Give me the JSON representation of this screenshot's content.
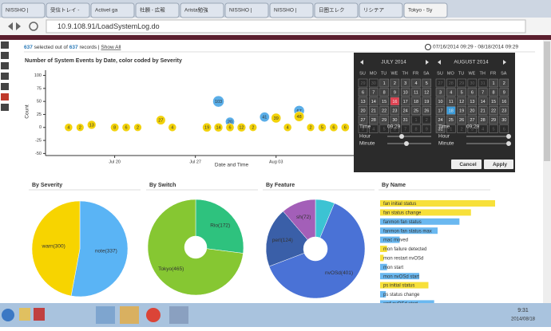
{
  "browser": {
    "tabs": [
      "NISSHO |",
      "受信トレイ -",
      "Activel ga",
      "社願 - 広報",
      "Arista勉強",
      "NISSHO |",
      "NISSHO |",
      "日圏エレク",
      "リシテア",
      "Tokyo - Sy"
    ],
    "url": "10.9.108.91/LoadSystemLog.do"
  },
  "toolbar": {
    "selected": 637,
    "selected_text": "selected out of",
    "total": 637,
    "records_text": "records |",
    "show_all": "Show All",
    "range": "07/16/2014 09:29 - 08/18/2014 09:29"
  },
  "chart_data": [
    {
      "type": "scatter",
      "title": "Number of System Events by Date, color coded by Severity",
      "x_label": "Date and Time",
      "y_label": "Count",
      "xlim": [
        "Jul 14",
        "Aug 22"
      ],
      "xticks": [
        "Jul 20",
        "Jul 27",
        "Aug 03"
      ],
      "ylim": [
        -54,
        110
      ],
      "yticks": [
        -50,
        -25,
        0,
        25,
        50,
        75,
        100
      ],
      "series": [
        {
          "color": "#5aaee8",
          "x": [
            "Jul 29",
            "Jul 30",
            "Aug 02",
            "Aug 05"
          ],
          "values": [
            50,
            11,
            20,
            32
          ],
          "sizes": [
            103,
            20,
            41,
            67
          ]
        },
        {
          "color": "#f2d20a",
          "x": [
            "Jul 16",
            "Jul 17",
            "Jul 18",
            "Jul 20",
            "Jul 21",
            "Jul 22",
            "Jul 24",
            "Jul 25",
            "Jul 28",
            "Jul 29",
            "Jul 30",
            "Jul 31",
            "Aug 01",
            "Aug 03",
            "Aug 04",
            "Aug 05",
            "Aug 06",
            "Aug 07",
            "Aug 08",
            "Aug 09"
          ],
          "values": [
            0,
            0,
            5,
            0,
            0,
            0,
            14,
            0,
            0,
            0,
            0,
            0,
            0,
            18,
            0,
            21,
            0,
            0,
            0,
            0
          ],
          "sizes": [
            4,
            2,
            13,
            8,
            6,
            2,
            27,
            4,
            19,
            14,
            6,
            12,
            2,
            39,
            4,
            48,
            2,
            5,
            6,
            6
          ]
        }
      ]
    },
    {
      "type": "pie",
      "title": "By Severity",
      "categories": [
        "note",
        "warn"
      ],
      "values": [
        337,
        300
      ],
      "value_labels": [
        "note(337)",
        "warn(300)"
      ],
      "colors": [
        "#5ab4f5",
        "#f7d400"
      ]
    },
    {
      "type": "donut",
      "title": "By Switch",
      "categories": [
        "Rio",
        "Tokyo"
      ],
      "values": [
        172,
        465
      ],
      "value_labels": [
        "Rio(172)",
        "Tokyo(465)"
      ],
      "colors": [
        "#2ec27e",
        "#86c732"
      ]
    },
    {
      "type": "donut",
      "title": "By Feature",
      "categories": [
        null,
        "nvOSd",
        "perl",
        "sh"
      ],
      "values": [
        40,
        401,
        124,
        72
      ],
      "value_labels": [
        null,
        "nvOSd(401)",
        "perl(124)",
        "sh(72)"
      ],
      "colors": [
        "#3cc3d3",
        "#4a72d6",
        "#3a5fa8",
        "#a35fb8"
      ]
    },
    {
      "type": "hbar",
      "title": "By Name",
      "categories": [
        "fan initial status",
        "fan status change",
        "fanmon fan status",
        "fanmon fan status max",
        "mac moved",
        "mon failure detected",
        "mon restart nvOSd",
        "mon start",
        "mon nvOSd start",
        "ps initial status",
        "ps status change",
        "smf nvOSd start"
      ],
      "values": [
        100,
        79,
        69,
        50,
        17,
        6,
        3,
        6,
        34,
        42,
        5,
        47
      ],
      "xlim": [
        0,
        100
      ],
      "colors": [
        "#f7e03a",
        "#f7e03a",
        "#6ab8f0",
        "#6ab8f0",
        "#6ab8f0",
        "#f7e03a",
        "#f7e03a",
        "#6ab8f0",
        "#6ab8f0",
        "#f7e03a",
        "#6ab8f0",
        "#6ab8f0"
      ]
    }
  ],
  "datepicker": {
    "weekdays": [
      "SU",
      "MO",
      "TU",
      "WE",
      "TH",
      "FR",
      "SA"
    ],
    "months": [
      {
        "title": "JULY 2014",
        "weeks": [
          [
            29,
            30,
            1,
            2,
            3,
            4,
            5
          ],
          [
            6,
            7,
            8,
            9,
            10,
            11,
            12
          ],
          [
            13,
            14,
            15,
            16,
            17,
            18,
            19
          ],
          [
            20,
            21,
            22,
            23,
            24,
            25,
            26
          ],
          [
            27,
            28,
            29,
            30,
            31,
            1,
            2
          ],
          [
            3,
            4,
            5,
            6,
            7,
            8,
            9
          ]
        ],
        "time": "09:29"
      },
      {
        "title": "AUGUST 2014",
        "weeks": [
          [
            27,
            28,
            29,
            30,
            31,
            1,
            2
          ],
          [
            3,
            4,
            5,
            6,
            7,
            8,
            9
          ],
          [
            10,
            11,
            12,
            13,
            14,
            15,
            16
          ],
          [
            17,
            18,
            19,
            20,
            21,
            22,
            23
          ],
          [
            24,
            25,
            26,
            27,
            28,
            29,
            30
          ],
          [
            31,
            1,
            2,
            3,
            4,
            5,
            6
          ]
        ],
        "time": "09:29"
      }
    ],
    "time_label": "Time",
    "hour_label": "Hour",
    "minute_label": "Minute",
    "cancel": "Cancel",
    "apply": "Apply"
  },
  "taskbar": {
    "time": "9:31",
    "date": "2014/08/18"
  }
}
